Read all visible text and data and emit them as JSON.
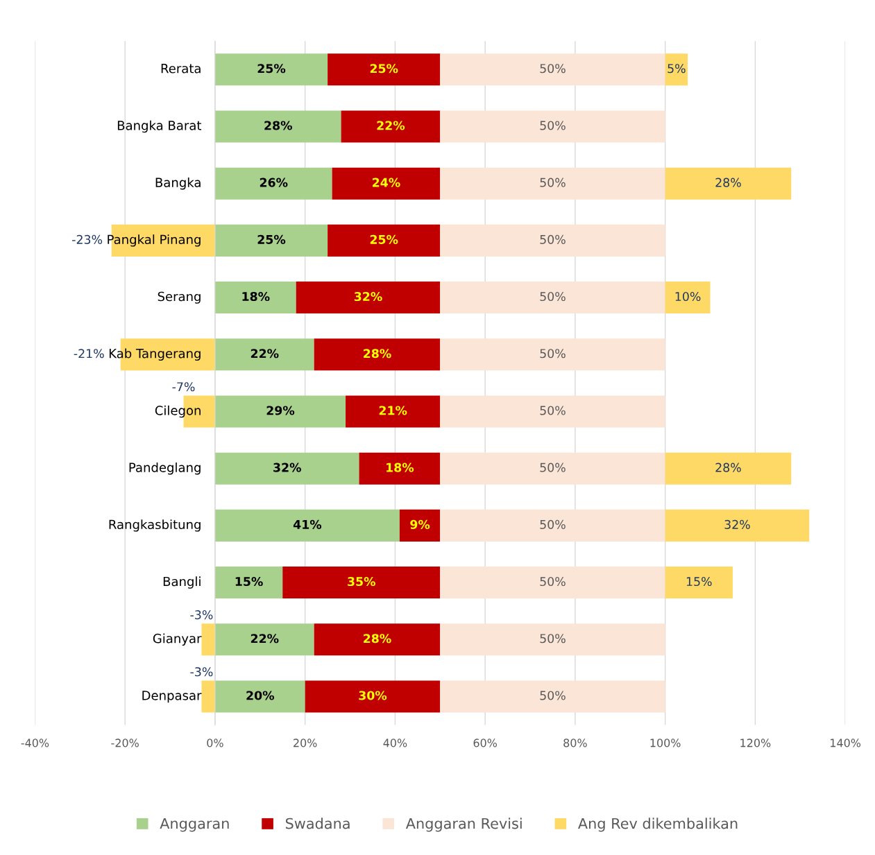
{
  "chart_data": {
    "type": "bar",
    "orientation": "horizontal",
    "stacked": true,
    "categories": [
      "Rerata",
      "Bangka Barat",
      "Bangka",
      "Pangkal Pinang",
      "Serang",
      "Kab Tangerang",
      "Cilegon",
      "Pandeglang",
      "Rangkasbitung",
      "Bangli",
      "Gianyar",
      "Denpasar"
    ],
    "series": [
      {
        "name": "Anggaran",
        "color": "#a9d18e",
        "values": [
          25,
          28,
          26,
          25,
          18,
          22,
          29,
          32,
          41,
          15,
          22,
          20
        ],
        "value_labels": [
          "25%",
          "28%",
          "26%",
          "25%",
          "18%",
          "22%",
          "29%",
          "32%",
          "41%",
          "15%",
          "22%",
          "20%"
        ]
      },
      {
        "name": "Swadana",
        "color": "#c00000",
        "values": [
          25,
          22,
          24,
          25,
          32,
          28,
          21,
          18,
          9,
          35,
          28,
          30
        ],
        "value_labels": [
          "25%",
          "22%",
          "24%",
          "25%",
          "32%",
          "28%",
          "21%",
          "18%",
          "9%",
          "35%",
          "28%",
          "30%"
        ]
      },
      {
        "name": "Anggaran Revisi",
        "color": "#fbe5d6",
        "values": [
          50,
          50,
          50,
          50,
          50,
          50,
          50,
          50,
          50,
          50,
          50,
          50
        ],
        "value_labels": [
          "50%",
          "50%",
          "50%",
          "50%",
          "50%",
          "50%",
          "50%",
          "50%",
          "50%",
          "50%",
          "50%",
          "50%"
        ]
      },
      {
        "name": "Ang Rev dikembalikan",
        "color": "#ffd966",
        "values": [
          5,
          null,
          28,
          -23,
          10,
          -21,
          -7,
          28,
          32,
          15,
          -3,
          -3
        ],
        "value_labels": [
          "5%",
          null,
          "28%",
          "-23%",
          "10%",
          "-21%",
          "-7%",
          "28%",
          "32%",
          "15%",
          "-3%",
          "-3%"
        ]
      }
    ],
    "xlim": [
      -40,
      140
    ],
    "xticks": [
      {
        "value": -40,
        "label": "-40%"
      },
      {
        "value": -20,
        "label": "-20%"
      },
      {
        "value": 0,
        "label": "0%"
      },
      {
        "value": 20,
        "label": "20%"
      },
      {
        "value": 40,
        "label": "40%"
      },
      {
        "value": 60,
        "label": "60%"
      },
      {
        "value": 80,
        "label": "80%"
      },
      {
        "value": 100,
        "label": "100%"
      },
      {
        "value": 120,
        "label": "120%"
      },
      {
        "value": 140,
        "label": "140%"
      }
    ],
    "grid": "x",
    "legend": "bottom"
  }
}
